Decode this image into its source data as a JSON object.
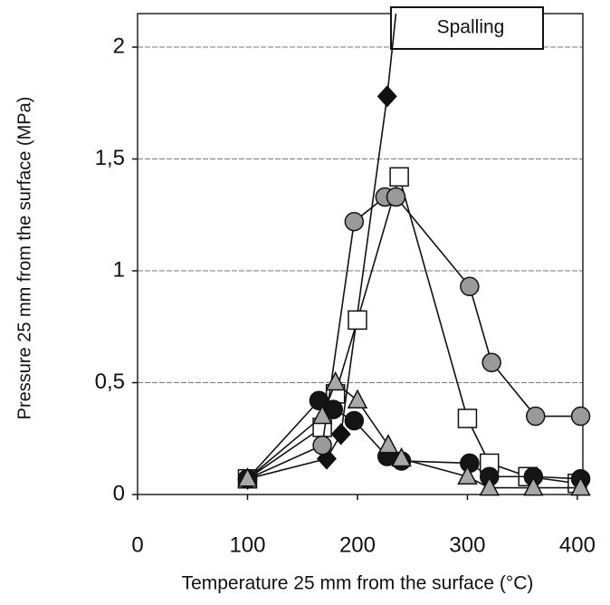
{
  "chart_data": {
    "type": "line",
    "xlabel": "Temperature 25 mm from the surface (°C)",
    "ylabel": "Pressure 25 mm from the surface (MPa)",
    "annotation": "Spalling",
    "xlim": [
      0,
      405
    ],
    "xticks": [
      0,
      100,
      200,
      300,
      400
    ],
    "ylim": [
      0,
      2.15
    ],
    "yticks": [
      0,
      {
        "value": 0.5,
        "label": "0,5"
      },
      1,
      {
        "value": 1.5,
        "label": "1,5"
      },
      2
    ],
    "grid": true,
    "series": [
      {
        "marker": "diamond",
        "color": "#111111",
        "x": [
          100,
          172,
          185,
          227,
          235
        ],
        "values": [
          0.07,
          0.16,
          0.27,
          1.78,
          2.15
        ]
      },
      {
        "marker": "square",
        "color": "#ffffff",
        "x": [
          100,
          168,
          180,
          200,
          238,
          300,
          320,
          355,
          400
        ],
        "values": [
          0.07,
          0.3,
          0.45,
          0.78,
          1.42,
          0.34,
          0.14,
          0.08,
          0.05
        ]
      },
      {
        "marker": "circle",
        "color": "#9a9a9a",
        "x": [
          100,
          168,
          197,
          225,
          235,
          302,
          322,
          362,
          403
        ],
        "values": [
          0.07,
          0.22,
          1.22,
          1.33,
          1.33,
          0.93,
          0.59,
          0.35,
          0.35
        ]
      },
      {
        "marker": "circle",
        "color": "#151515",
        "x": [
          100,
          165,
          178,
          197,
          227,
          240,
          302,
          320,
          360,
          403
        ],
        "values": [
          0.07,
          0.42,
          0.38,
          0.33,
          0.17,
          0.15,
          0.14,
          0.08,
          0.08,
          0.07
        ]
      },
      {
        "marker": "triangle",
        "color": "#a8a8a8",
        "x": [
          100,
          168,
          180,
          200,
          228,
          240,
          300,
          320,
          360,
          403
        ],
        "values": [
          0.07,
          0.35,
          0.5,
          0.42,
          0.22,
          0.16,
          0.08,
          0.03,
          0.03,
          0.03
        ]
      }
    ]
  }
}
